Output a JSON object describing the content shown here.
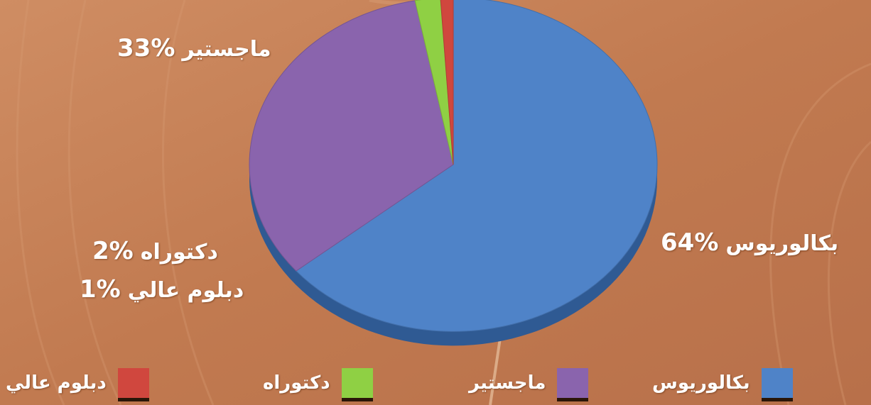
{
  "chart_data": {
    "type": "pie",
    "slices": [
      {
        "label": "بكالوريوس",
        "value": 64,
        "value_label": "64%",
        "color": "#4f83c8"
      },
      {
        "label": "ماجستير",
        "value": 33,
        "value_label": "33%",
        "color": "#8a64ad"
      },
      {
        "label": "دكتوراه",
        "value": 2,
        "value_label": "2%",
        "color": "#8fd044"
      },
      {
        "label": "دبلوم عالي",
        "value": 1,
        "value_label": "1%",
        "color": "#d0473e"
      }
    ],
    "legend": {
      "placement": "bottom",
      "entries": [
        "بكالوريوس",
        "ماجستير",
        "دكتوراه",
        "دبلوم عالي"
      ]
    }
  },
  "colors": {
    "background": "#c37d54",
    "legend_shadow": "#2a1608"
  }
}
